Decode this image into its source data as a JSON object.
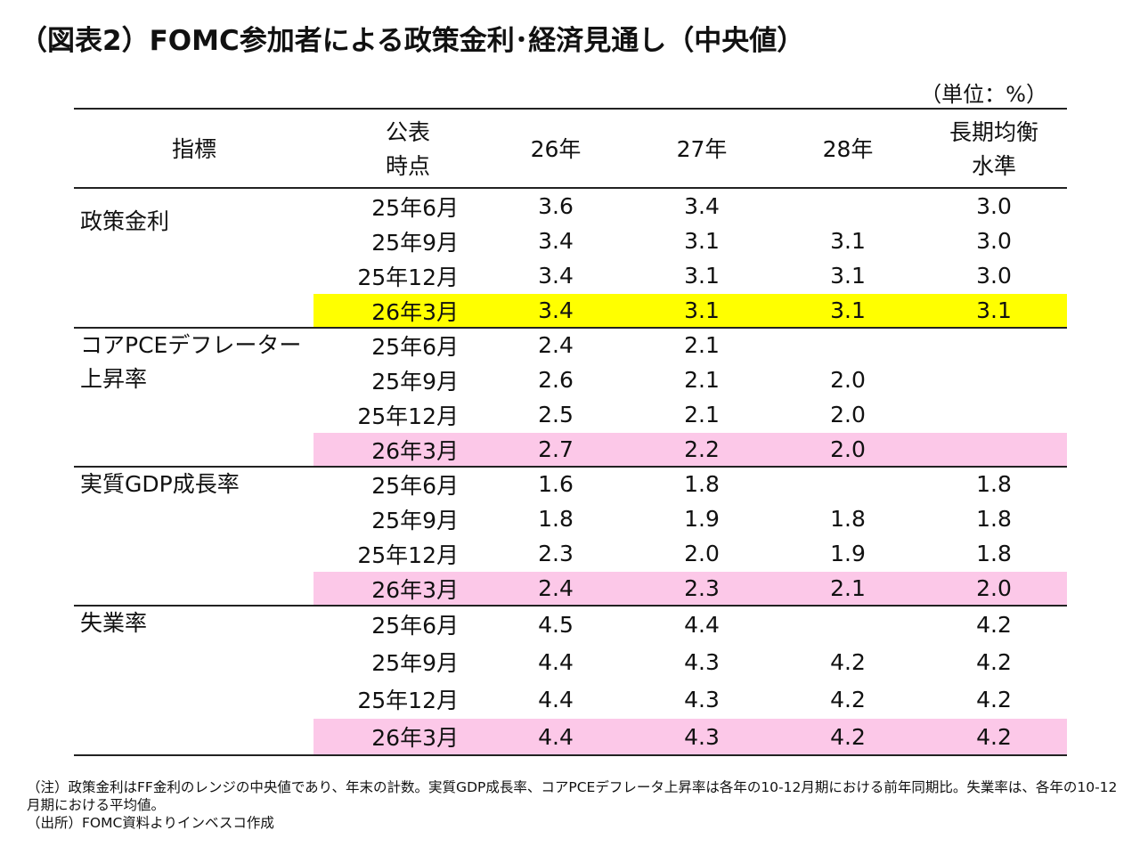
{
  "title": "（図表2）FOMC参加者による政策金利･経済見通し（中央値）",
  "unit": "（単位：%）",
  "table": {
    "header": [
      [
        "指標"
      ],
      [
        "公表",
        "時点"
      ],
      [
        "26年"
      ],
      [
        "27年"
      ],
      [
        "28年"
      ],
      [
        "長期均衡",
        "水準"
      ]
    ],
    "groups": [
      {
        "name": [
          "政策金利"
        ],
        "highlight_color": "#ffff00",
        "rows": [
          [
            "25年6月",
            "3.6",
            "3.4",
            null,
            "3.0"
          ],
          [
            "25年9月",
            "3.4",
            "3.1",
            "3.1",
            "3.0"
          ],
          [
            "25年12月",
            "3.4",
            "3.1",
            "3.1",
            "3.0"
          ],
          [
            "26年3月",
            "3.4",
            "3.1",
            "3.1",
            "3.1"
          ]
        ]
      },
      {
        "name": [
          "コアPCEデフレーター",
          "上昇率"
        ],
        "highlight_color": "#fcc8e8",
        "rows": [
          [
            "25年6月",
            "2.4",
            "2.1",
            null,
            null
          ],
          [
            "25年9月",
            "2.6",
            "2.1",
            "2.0",
            null
          ],
          [
            "25年12月",
            "2.5",
            "2.1",
            "2.0",
            null
          ],
          [
            "26年3月",
            "2.7",
            "2.2",
            "2.0",
            null
          ]
        ]
      },
      {
        "name": [
          "実質GDP成長率"
        ],
        "highlight_color": "#fcc8e8",
        "rows": [
          [
            "25年6月",
            "1.6",
            "1.8",
            null,
            "1.8"
          ],
          [
            "25年9月",
            "1.8",
            "1.9",
            "1.8",
            "1.8"
          ],
          [
            "25年12月",
            "2.3",
            "2.0",
            "1.9",
            "1.8"
          ],
          [
            "26年3月",
            "2.4",
            "2.3",
            "2.1",
            "2.0"
          ]
        ]
      },
      {
        "name": [
          "失業率"
        ],
        "highlight_color": "#fcc8e8",
        "rows": [
          [
            "25年6月",
            "4.5",
            "4.4",
            null,
            "4.2"
          ],
          [
            "25年9月",
            "4.4",
            "4.3",
            "4.2",
            "4.2"
          ],
          [
            "25年12月",
            "4.4",
            "4.3",
            "4.2",
            "4.2"
          ],
          [
            "26年3月",
            "4.4",
            "4.3",
            "4.2",
            "4.2"
          ]
        ]
      }
    ]
  },
  "notes": [
    "（注）政策金利はFF金利のレンジの中央値であり、年末の計数。実質GDP成長率、コアPCEデフレータ上昇率は各年の10-12月期における前年同期比。失業率は、各年の10-12月期における平均値。",
    "（出所）FOMC資料よりインベスコ作成"
  ]
}
